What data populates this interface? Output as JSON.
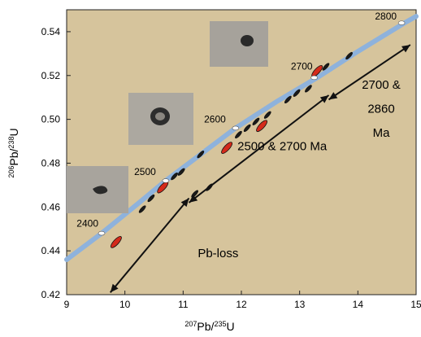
{
  "chart_data": {
    "type": "scatter",
    "xlabel_main": "207",
    "xlabel_sub": "Pb/",
    "xlabel_sup2": "235",
    "xlabel_tail": "U",
    "ylabel_sup1": "206",
    "ylabel_mid": "Pb/",
    "ylabel_sup2": "238",
    "ylabel_tail": "U",
    "xlim": [
      9,
      15
    ],
    "ylim": [
      0.42,
      0.55
    ],
    "x_ticks": [
      "9",
      "10",
      "11",
      "12",
      "13",
      "14",
      "15"
    ],
    "y_ticks": [
      "0.42",
      "0.44",
      "0.46",
      "0.48",
      "0.50",
      "0.52",
      "0.54"
    ],
    "background_color": "#d6c49c",
    "concordia_color": "#8eb2dc",
    "ellipse_black_color": "#1a1a1a",
    "ellipse_red_color": "#d42a1a",
    "concordia": [
      {
        "x": 9.0,
        "y": 0.436
      },
      {
        "x": 9.6,
        "y": 0.448
      },
      {
        "x": 10.2,
        "y": 0.461
      },
      {
        "x": 10.7,
        "y": 0.472
      },
      {
        "x": 11.3,
        "y": 0.484
      },
      {
        "x": 11.9,
        "y": 0.496
      },
      {
        "x": 12.6,
        "y": 0.508
      },
      {
        "x": 13.3,
        "y": 0.519
      },
      {
        "x": 14.0,
        "y": 0.531
      },
      {
        "x": 14.8,
        "y": 0.544
      },
      {
        "x": 15.0,
        "y": 0.547
      }
    ],
    "age_markers": [
      {
        "label": "2400",
        "x": 9.6,
        "y": 0.448
      },
      {
        "label": "2500",
        "x": 10.7,
        "y": 0.472
      },
      {
        "label": "2600",
        "x": 11.9,
        "y": 0.496
      },
      {
        "label": "2700",
        "x": 13.25,
        "y": 0.519
      },
      {
        "label": "2800",
        "x": 14.75,
        "y": 0.544
      }
    ],
    "ellipses": [
      {
        "x": 9.85,
        "y": 0.444,
        "color": "red"
      },
      {
        "x": 10.3,
        "y": 0.459,
        "color": "black"
      },
      {
        "x": 10.45,
        "y": 0.464,
        "color": "black"
      },
      {
        "x": 10.65,
        "y": 0.469,
        "color": "red"
      },
      {
        "x": 10.85,
        "y": 0.474,
        "color": "black"
      },
      {
        "x": 10.97,
        "y": 0.476,
        "color": "black"
      },
      {
        "x": 11.3,
        "y": 0.484,
        "color": "black"
      },
      {
        "x": 11.2,
        "y": 0.466,
        "color": "black"
      },
      {
        "x": 11.45,
        "y": 0.469,
        "color": "black"
      },
      {
        "x": 11.75,
        "y": 0.487,
        "color": "red"
      },
      {
        "x": 11.95,
        "y": 0.493,
        "color": "black"
      },
      {
        "x": 12.1,
        "y": 0.496,
        "color": "black"
      },
      {
        "x": 12.25,
        "y": 0.499,
        "color": "black"
      },
      {
        "x": 12.35,
        "y": 0.497,
        "color": "red"
      },
      {
        "x": 12.45,
        "y": 0.502,
        "color": "black"
      },
      {
        "x": 12.8,
        "y": 0.509,
        "color": "black"
      },
      {
        "x": 12.95,
        "y": 0.512,
        "color": "black"
      },
      {
        "x": 13.15,
        "y": 0.514,
        "color": "black"
      },
      {
        "x": 13.3,
        "y": 0.522,
        "color": "red"
      },
      {
        "x": 13.45,
        "y": 0.524,
        "color": "black"
      },
      {
        "x": 13.85,
        "y": 0.529,
        "color": "black"
      }
    ],
    "annotations": [
      {
        "text": "Pb-loss",
        "x": 11.6,
        "y": 0.437
      },
      {
        "text": "2500 & 2700 Ma",
        "x": 12.7,
        "y": 0.486
      },
      {
        "text": "2700 &",
        "x": 14.4,
        "y": 0.514
      },
      {
        "text": "2860",
        "x": 14.4,
        "y": 0.503
      },
      {
        "text": "Ma",
        "x": 14.4,
        "y": 0.492
      }
    ],
    "arrows": [
      {
        "name": "pb-loss-arrow",
        "x1": 11.1,
        "y1": 0.464,
        "x2": 9.75,
        "y2": 0.421
      },
      {
        "name": "age-2500-2700-arrow",
        "x1": 13.5,
        "y1": 0.511,
        "x2": 11.1,
        "y2": 0.462
      },
      {
        "name": "age-2700-2860-arrow",
        "x1": 14.9,
        "y1": 0.534,
        "x2": 13.5,
        "y2": 0.509
      }
    ]
  }
}
